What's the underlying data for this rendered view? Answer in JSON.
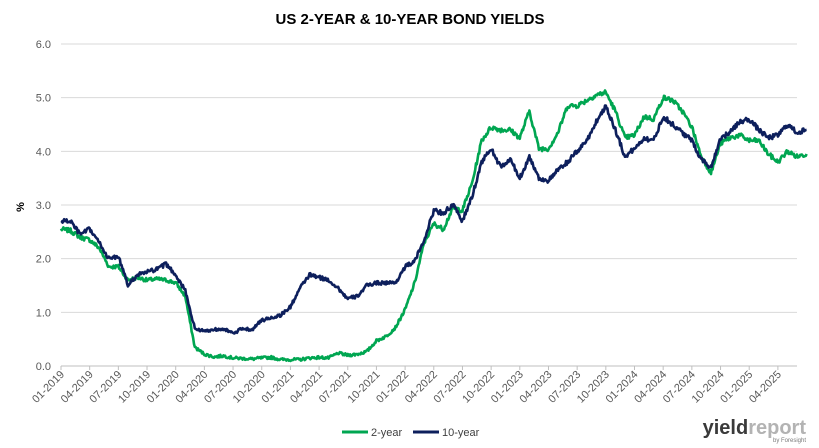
{
  "chart_data": {
    "type": "line",
    "title": "US 2-YEAR & 10-YEAR BOND YIELDS",
    "ylabel": "%",
    "xlabel": "",
    "ylim": [
      0,
      6
    ],
    "yticks": [
      "0.0",
      "1.0",
      "2.0",
      "3.0",
      "4.0",
      "5.0",
      "6.0"
    ],
    "xticks": [
      "01-2019",
      "04-2019",
      "07-2019",
      "10-2019",
      "01-2020",
      "04-2020",
      "07-2020",
      "10-2020",
      "01-2021",
      "04-2021",
      "07-2021",
      "10-2021",
      "01-2022",
      "04-2022",
      "07-2022",
      "10-2022",
      "01-2023",
      "04-2023",
      "07-2023",
      "10-2023",
      "01-2024",
      "04-2024",
      "07-2024",
      "10-2024",
      "01-2025",
      "04-2025"
    ],
    "grid": true,
    "legend_position": "bottom",
    "x": [
      "01-2019",
      "02-2019",
      "03-2019",
      "04-2019",
      "05-2019",
      "06-2019",
      "07-2019",
      "08-2019",
      "09-2019",
      "10-2019",
      "11-2019",
      "12-2019",
      "01-2020",
      "02-2020",
      "03-2020",
      "04-2020",
      "05-2020",
      "06-2020",
      "07-2020",
      "08-2020",
      "09-2020",
      "10-2020",
      "11-2020",
      "12-2020",
      "01-2021",
      "02-2021",
      "03-2021",
      "04-2021",
      "05-2021",
      "06-2021",
      "07-2021",
      "08-2021",
      "09-2021",
      "10-2021",
      "11-2021",
      "12-2021",
      "01-2022",
      "02-2022",
      "03-2022",
      "04-2022",
      "05-2022",
      "06-2022",
      "07-2022",
      "08-2022",
      "09-2022",
      "10-2022",
      "11-2022",
      "12-2022",
      "01-2023",
      "02-2023",
      "03-2023",
      "04-2023",
      "05-2023",
      "06-2023",
      "07-2023",
      "08-2023",
      "09-2023",
      "10-2023",
      "11-2023",
      "12-2023",
      "01-2024",
      "02-2024",
      "03-2024",
      "04-2024",
      "05-2024",
      "06-2024",
      "07-2024",
      "08-2024",
      "09-2024",
      "10-2024",
      "11-2024",
      "12-2024",
      "01-2025",
      "02-2025",
      "03-2025",
      "04-2025",
      "05-2025",
      "06-2025",
      "07-2025"
    ],
    "series": [
      {
        "name": "2-year",
        "color": "#00a651",
        "values": [
          2.55,
          2.52,
          2.4,
          2.35,
          2.2,
          1.85,
          1.85,
          1.6,
          1.65,
          1.6,
          1.62,
          1.6,
          1.55,
          1.3,
          0.35,
          0.22,
          0.17,
          0.19,
          0.15,
          0.14,
          0.13,
          0.15,
          0.16,
          0.12,
          0.12,
          0.12,
          0.15,
          0.16,
          0.15,
          0.24,
          0.2,
          0.22,
          0.27,
          0.47,
          0.55,
          0.72,
          1.05,
          1.55,
          2.3,
          2.65,
          2.55,
          2.95,
          2.9,
          3.4,
          4.2,
          4.45,
          4.4,
          4.4,
          4.25,
          4.75,
          4.05,
          4.05,
          4.35,
          4.85,
          4.85,
          4.95,
          5.05,
          5.1,
          4.75,
          4.25,
          4.3,
          4.65,
          4.6,
          5.0,
          4.95,
          4.75,
          4.45,
          3.9,
          3.6,
          4.15,
          4.25,
          4.3,
          4.2,
          4.2,
          3.95,
          3.8,
          4.0,
          3.9,
          3.95
        ]
      },
      {
        "name": "10-year",
        "color": "#0d1f5c",
        "values": [
          2.7,
          2.7,
          2.45,
          2.55,
          2.3,
          2.0,
          2.05,
          1.5,
          1.7,
          1.75,
          1.8,
          1.9,
          1.7,
          1.4,
          0.7,
          0.65,
          0.68,
          0.7,
          0.6,
          0.7,
          0.68,
          0.85,
          0.9,
          0.95,
          1.1,
          1.45,
          1.7,
          1.65,
          1.6,
          1.45,
          1.25,
          1.3,
          1.5,
          1.55,
          1.55,
          1.55,
          1.85,
          1.95,
          2.35,
          2.9,
          2.85,
          3.0,
          2.7,
          3.15,
          3.8,
          4.05,
          3.7,
          3.85,
          3.5,
          3.9,
          3.5,
          3.45,
          3.65,
          3.8,
          4.0,
          4.2,
          4.55,
          4.85,
          4.4,
          3.9,
          4.05,
          4.25,
          4.2,
          4.65,
          4.5,
          4.35,
          4.2,
          3.85,
          3.7,
          4.25,
          4.35,
          4.55,
          4.6,
          4.4,
          4.25,
          4.3,
          4.5,
          4.35,
          4.4
        ]
      }
    ]
  },
  "logo": {
    "main": "yieldreport",
    "sub": "by Foresight"
  }
}
